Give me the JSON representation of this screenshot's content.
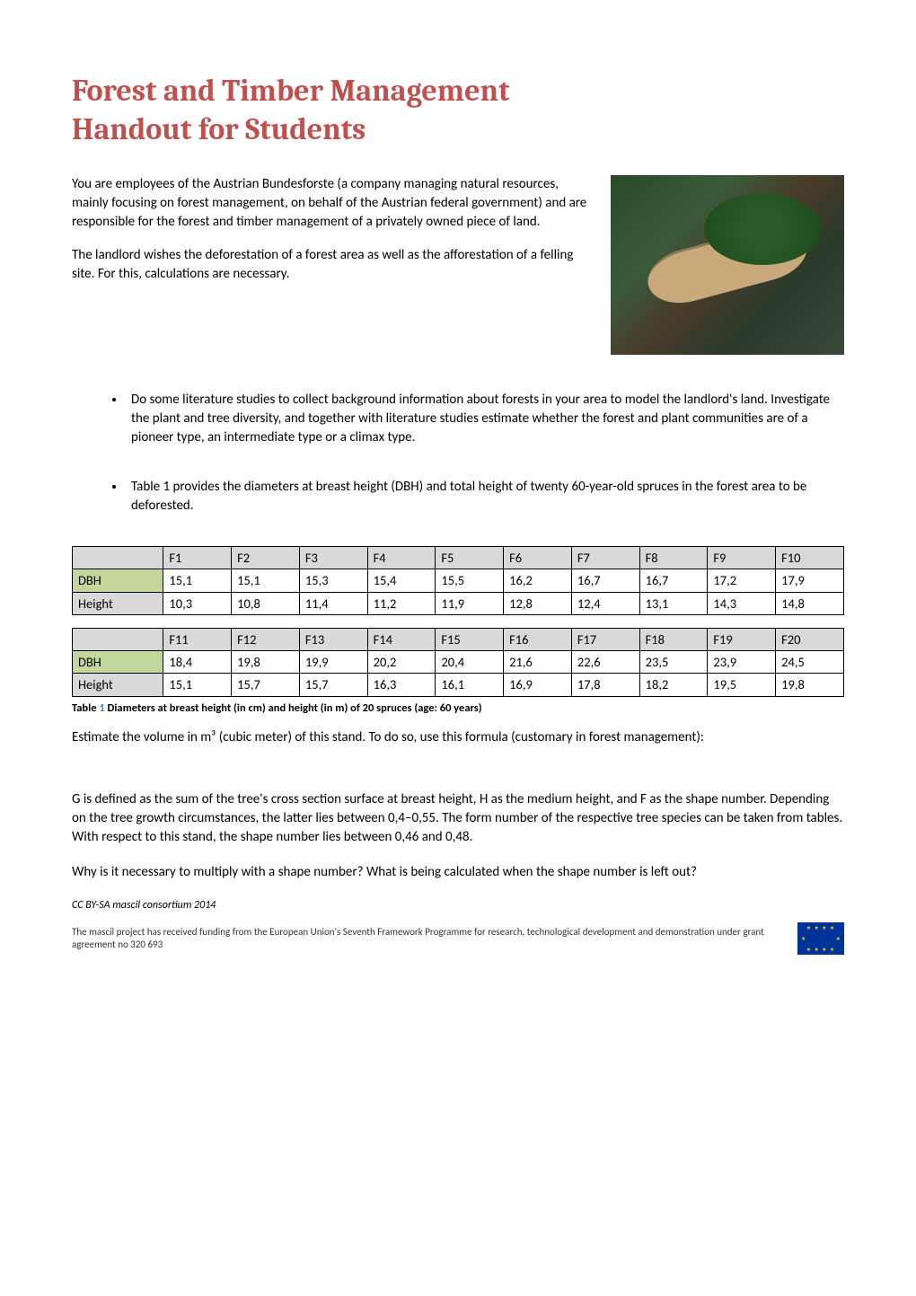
{
  "title": "Forest and Timber Management\nHandout for Students",
  "intro": {
    "p1": "You are employees of the Austrian Bundesforste (a company managing natural resources, mainly focusing on forest management, on behalf of the Austrian federal government) and are responsible for the forest and timber management of a privately owned piece of land.",
    "p2": "The landlord wishes the deforestation of a forest area as well as the afforestation of a felling site. For this, calculations are necessary."
  },
  "bullet1": "Do some literature studies to collect background information about forests in your area to model the landlord's land. Investigate the plant and tree diversity, and together with literature studies estimate whether the forest and plant communities are of a pioneer type, an intermediate type or a climax type.",
  "bullet2": "Table 1 provides the diameters at breast height (DBH) and total height of twenty 60-year-old spruces  in the forest area to be deforested.",
  "table1": {
    "type": "table",
    "row_label_dbh": "DBH",
    "row_label_height": "Height",
    "columns": [
      "F1",
      "F2",
      "F3",
      "F4",
      "F5",
      "F6",
      "F7",
      "F8",
      "F9",
      "F10"
    ],
    "dbh": [
      "15,1",
      "15,1",
      "15,3",
      "15,4",
      "15,5",
      "16,2",
      "16,7",
      "16,7",
      "17,2",
      "17,9"
    ],
    "height": [
      "10,3",
      "10,8",
      "11,4",
      "11,2",
      "11,9",
      "12,8",
      "12,4",
      "13,1",
      "14,3",
      "14,8"
    ],
    "header_bg": "#d9d9d9",
    "dbh_bg": "#c3d69b",
    "height_bg": "#d9d9d9",
    "border_color": "#000000",
    "font_size": 14.5
  },
  "table2": {
    "type": "table",
    "row_label_dbh": "DBH",
    "row_label_height": "Height",
    "columns": [
      "F11",
      "F12",
      "F13",
      "F14",
      "F15",
      "F16",
      "F17",
      "F18",
      "F19",
      "F20"
    ],
    "dbh": [
      "18,4",
      "19,8",
      "19,9",
      "20,2",
      "20,4",
      "21,6",
      "22,6",
      "23,5",
      "23,9",
      "24,5"
    ],
    "height": [
      "15,1",
      "15,7",
      "15,7",
      "16,3",
      "16,1",
      "16,9",
      "17,8",
      "18,2",
      "19,5",
      "19,8"
    ],
    "header_bg": "#d9d9d9",
    "dbh_bg": "#c3d69b",
    "height_bg": "#d9d9d9",
    "border_color": "#000000",
    "font_size": 14.5
  },
  "caption": {
    "prefix": "Table ",
    "num": "1",
    "rest": " Diameters at breast height (in cm) and height (in m) of 20 spruces (age: 60 years)"
  },
  "p_estimate": "Estimate the volume in m³ (cubic meter) of this stand. To do so, use this formula (customary in forest management):",
  "p_gdef": "G is defined as the sum of the tree's cross section surface at breast height, H as the medium height, and F as the shape number. Depending on the tree growth circumstances, the latter lies between 0,4–0,55. The form number of the respective tree species can be taken from tables. With respect to this stand, the shape number lies between 0,46 and 0,48.",
  "p_why": "Why is it necessary to multiply with a shape number? What is being calculated when the shape number is left out?",
  "license": "CC BY-SA mascil consortium 2014",
  "funding": "The mascil project has received funding from the European Union's Seventh Framework Programme for research, technological development and demonstration under grant agreement no 320 693",
  "colors": {
    "title": "#c0504d",
    "caption_num": "#4f81bd",
    "body_text": "#000000",
    "eu_flag_bg": "#003399",
    "eu_flag_stars": "#ffcc00"
  },
  "typography": {
    "title_font": "Cambria, Georgia, serif",
    "title_size": 34,
    "title_weight": "bold",
    "body_font": "Calibri, Arial, sans-serif",
    "body_size": 15,
    "caption_size": 12.5,
    "footer_size": 11
  }
}
